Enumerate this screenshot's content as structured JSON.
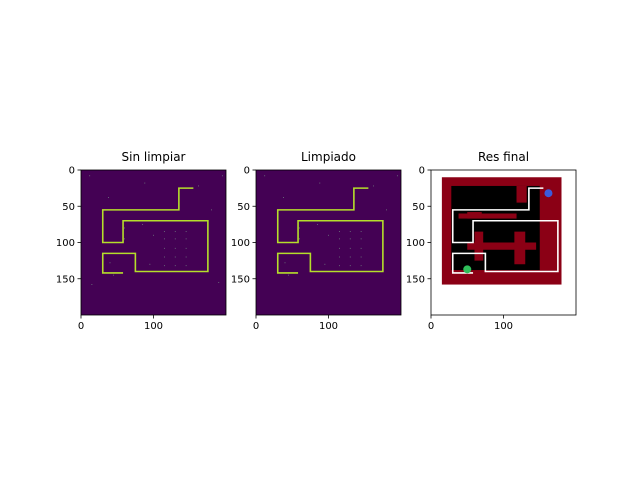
{
  "figure": {
    "background": "#ffffff"
  },
  "chart_data": [
    {
      "type": "heatmap",
      "title": "Sin limpiar",
      "xlim": [
        0,
        200
      ],
      "ylim": [
        200,
        0
      ],
      "xticks": [
        0,
        100
      ],
      "yticks": [
        0,
        50,
        100,
        150
      ],
      "colormap": "viridis",
      "background_color": "#440154",
      "path_color": "#b5de2b",
      "path": [
        [
          155,
          25
        ],
        [
          135,
          25
        ],
        [
          135,
          55
        ],
        [
          30,
          55
        ],
        [
          30,
          100
        ],
        [
          58,
          100
        ],
        [
          58,
          70
        ],
        [
          175,
          70
        ],
        [
          175,
          140
        ],
        [
          75,
          140
        ],
        [
          75,
          115
        ],
        [
          30,
          115
        ],
        [
          30,
          142
        ],
        [
          58,
          142
        ]
      ],
      "noise_points": [
        [
          12,
          8
        ],
        [
          195,
          8
        ],
        [
          162,
          22
        ],
        [
          38,
          38
        ],
        [
          88,
          18
        ],
        [
          15,
          158
        ],
        [
          85,
          75
        ],
        [
          60,
          80
        ],
        [
          180,
          55
        ],
        [
          115,
          85
        ],
        [
          130,
          85
        ],
        [
          145,
          85
        ],
        [
          115,
          95
        ],
        [
          130,
          95
        ],
        [
          145,
          95
        ],
        [
          115,
          108
        ],
        [
          130,
          108
        ],
        [
          145,
          108
        ],
        [
          115,
          120
        ],
        [
          130,
          120
        ],
        [
          145,
          120
        ],
        [
          115,
          132
        ],
        [
          130,
          132
        ],
        [
          145,
          132
        ],
        [
          100,
          90
        ],
        [
          60,
          95
        ],
        [
          190,
          155
        ],
        [
          40,
          128
        ],
        [
          45,
          145
        ],
        [
          95,
          130
        ]
      ]
    },
    {
      "type": "heatmap",
      "title": "Limpiado",
      "xlim": [
        0,
        200
      ],
      "ylim": [
        200,
        0
      ],
      "xticks": [
        0,
        100
      ],
      "yticks": [
        0,
        50,
        100,
        150
      ],
      "colormap": "viridis",
      "background_color": "#440154",
      "path_color": "#b5de2b",
      "path": [
        [
          155,
          25
        ],
        [
          135,
          25
        ],
        [
          135,
          55
        ],
        [
          30,
          55
        ],
        [
          30,
          100
        ],
        [
          58,
          100
        ],
        [
          58,
          70
        ],
        [
          175,
          70
        ],
        [
          175,
          140
        ],
        [
          75,
          140
        ],
        [
          75,
          115
        ],
        [
          30,
          115
        ],
        [
          30,
          142
        ],
        [
          58,
          142
        ]
      ],
      "noise_points": [
        [
          12,
          8
        ],
        [
          195,
          8
        ],
        [
          162,
          22
        ],
        [
          38,
          38
        ],
        [
          88,
          18
        ],
        [
          85,
          75
        ],
        [
          60,
          80
        ],
        [
          180,
          55
        ],
        [
          115,
          85
        ],
        [
          130,
          85
        ],
        [
          145,
          85
        ],
        [
          115,
          95
        ],
        [
          130,
          95
        ],
        [
          145,
          95
        ],
        [
          115,
          108
        ],
        [
          130,
          108
        ],
        [
          145,
          108
        ],
        [
          115,
          120
        ],
        [
          130,
          120
        ],
        [
          145,
          120
        ],
        [
          115,
          132
        ],
        [
          130,
          132
        ],
        [
          145,
          132
        ],
        [
          100,
          90
        ],
        [
          60,
          95
        ],
        [
          40,
          128
        ],
        [
          45,
          145
        ],
        [
          95,
          130
        ]
      ]
    },
    {
      "type": "heatmap",
      "title": "Res final",
      "xlim": [
        0,
        200
      ],
      "ylim": [
        200,
        0
      ],
      "xticks": [
        0,
        100
      ],
      "yticks": [
        0,
        50,
        100,
        150
      ],
      "background_color": "#ffffff",
      "wall_color": "#8b0015",
      "floor_color": "#000000",
      "path_color": "#ffffff",
      "outer_wall": [
        15,
        10,
        180,
        158
      ],
      "floor_regions": [
        [
          28,
          22,
          150,
          138
        ]
      ],
      "wall_blocks": [
        [
          118,
          22,
          132,
          45
        ],
        [
          38,
          60,
          118,
          67
        ],
        [
          50,
          58,
          70,
          67
        ],
        [
          60,
          85,
          72,
          125
        ],
        [
          50,
          100,
          145,
          110
        ],
        [
          115,
          85,
          130,
          130
        ],
        [
          118,
          22,
          130,
          42
        ]
      ],
      "path": [
        [
          155,
          25
        ],
        [
          135,
          25
        ],
        [
          135,
          55
        ],
        [
          30,
          55
        ],
        [
          30,
          100
        ],
        [
          58,
          100
        ],
        [
          58,
          70
        ],
        [
          175,
          70
        ],
        [
          175,
          140
        ],
        [
          75,
          140
        ],
        [
          75,
          115
        ],
        [
          30,
          115
        ],
        [
          30,
          142
        ],
        [
          58,
          142
        ]
      ],
      "markers": [
        {
          "x": 162,
          "y": 32,
          "color": "#3b5bdb"
        },
        {
          "x": 50,
          "y": 137,
          "color": "#2fbf5a"
        }
      ]
    }
  ]
}
